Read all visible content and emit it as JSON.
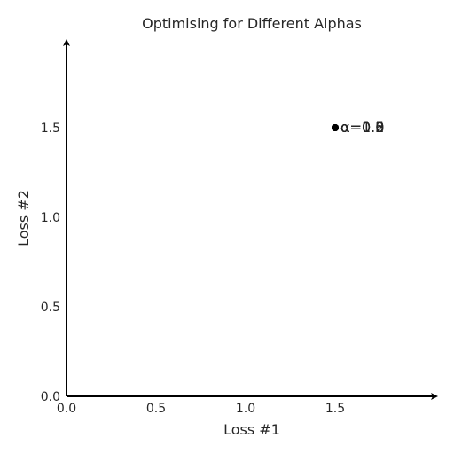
{
  "chart_data": {
    "type": "scatter",
    "title": "Optimising for Different Alphas",
    "xlabel": "Loss #1",
    "ylabel": "Loss #2",
    "xlim": [
      0,
      2
    ],
    "ylim": [
      0,
      2
    ],
    "xticks": [
      "0.0",
      "0.5",
      "1.0",
      "1.5"
    ],
    "yticks": [
      "0.0",
      "0.5",
      "1.0",
      "1.5"
    ],
    "grid": false,
    "axes_style": "arrows",
    "series": [
      {
        "points": [
          {
            "x": 1.5,
            "y": 1.5,
            "label": "α=0.0"
          },
          {
            "x": 1.5,
            "y": 1.5,
            "label": "α=0.2"
          },
          {
            "x": 1.5,
            "y": 1.5,
            "label": "α=0.5"
          },
          {
            "x": 1.5,
            "y": 1.5,
            "label": "α=0.8"
          },
          {
            "x": 1.5,
            "y": 1.5,
            "label": "α=1.0"
          }
        ]
      }
    ],
    "colors": {
      "axis": "#000000",
      "text": "#262626",
      "point": "#000000"
    }
  }
}
